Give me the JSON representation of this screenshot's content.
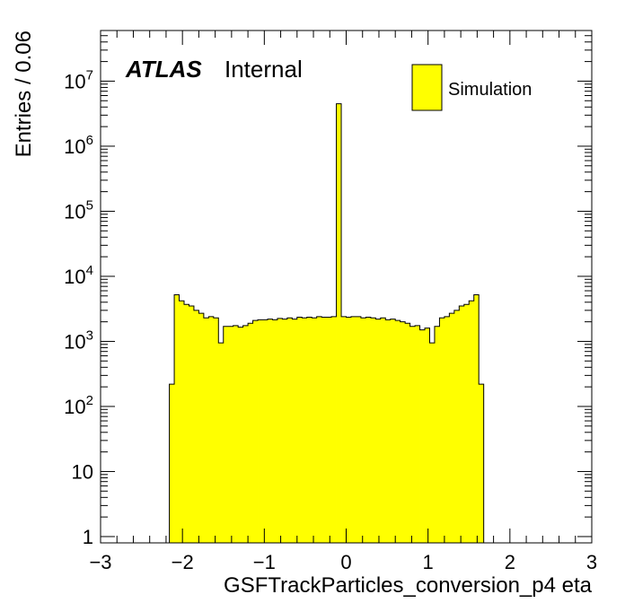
{
  "chart_data": {
    "type": "bar",
    "xlabel": "GSFTrackParticles_conversion_p4 eta",
    "ylabel": "Entries / 0.06",
    "xlim": [
      -3,
      3
    ],
    "ylim": [
      0.8,
      60000000
    ],
    "y_scale": "log",
    "x_tick_labels": [
      "−3",
      "−2",
      "−1",
      "0",
      "1",
      "2",
      "3"
    ],
    "y_tick_labels": [
      {
        "value": 1,
        "label": "1"
      },
      {
        "value": 10,
        "label": "10"
      },
      {
        "value": 100,
        "label": "10",
        "exp": "2"
      },
      {
        "value": 1000,
        "label": "10",
        "exp": "3"
      },
      {
        "value": 10000,
        "label": "10",
        "exp": "4"
      },
      {
        "value": 100000,
        "label": "10",
        "exp": "5"
      },
      {
        "value": 1000000,
        "label": "10",
        "exp": "6"
      },
      {
        "value": 10000000,
        "label": "10",
        "exp": "7"
      }
    ],
    "bin_edges_start": -2.16,
    "bin_width": 0.06,
    "values": [
      220,
      5200,
      4200,
      3700,
      3500,
      3000,
      2700,
      2300,
      2400,
      2300,
      950,
      1700,
      1700,
      1750,
      1650,
      1750,
      1900,
      2100,
      2150,
      2150,
      2200,
      2150,
      2250,
      2200,
      2300,
      2200,
      2350,
      2300,
      2350,
      2300,
      2400,
      2350,
      2350,
      2400,
      4500000,
      2400,
      2350,
      2400,
      2400,
      2300,
      2350,
      2300,
      2200,
      2300,
      2150,
      2200,
      2100,
      2000,
      1900,
      1700,
      1750,
      1500,
      1600,
      950,
      1700,
      2300,
      2400,
      2700,
      3000,
      3500,
      3700,
      4200,
      5200,
      220
    ],
    "series": [
      {
        "name": "Simulation",
        "color": "#ffff00"
      }
    ],
    "legend_position": "top-right",
    "grid": false,
    "annotation": {
      "bold": "ATLAS",
      "normal": "Internal"
    }
  }
}
